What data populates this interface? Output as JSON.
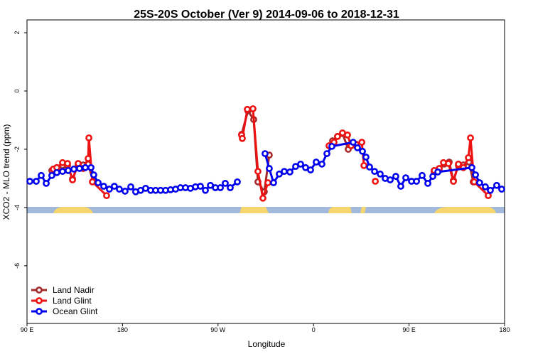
{
  "chart_data": {
    "type": "line",
    "title": "25S-20S October (Ver 9)   2014-09-06 to 2018-12-31",
    "xlabel": "Longitude",
    "ylabel": "XCO2 - MLO trend (ppm)",
    "xlim": [
      90,
      540
    ],
    "ylim": [
      -7.98,
      2.44
    ],
    "xticks": [
      {
        "value": 90,
        "label": "90 E"
      },
      180,
      {
        "value": 270,
        "label": "90 W"
      },
      {
        "value": 360,
        "label": "0"
      },
      {
        "value": 450,
        "label": "90 E"
      },
      {
        "value": 540,
        "label": "180"
      }
    ],
    "yticks": [
      2,
      0,
      -2,
      -4,
      -6
    ],
    "legend": "bottom-left",
    "series": [
      {
        "name": "Land Nadir",
        "color": "#a52a2a",
        "x": [
          113.4,
          118.1,
          123.5,
          128.2,
          132.9,
          138.2,
          142.9,
          147.6,
          152.3,
          null,
          292.2,
          298.2,
          303.6,
          307.6,
          313.6,
          318.3,
          null,
          377.9,
          382.6,
          387.3,
          392.7,
          397.3,
          null,
          473.7,
          478.4,
          483.1,
          487.8,
          491.8,
          496.5,
          501.2,
          506.5,
          510.5
        ],
        "values": [
          -2.73,
          -2.63,
          -2.56,
          -2.56,
          -3.02,
          -2.54,
          -2.54,
          -2.51,
          -3.1,
          null,
          -1.49,
          -0.68,
          -0.98,
          -3.12,
          -3.46,
          -2.2,
          null,
          -1.71,
          -1.56,
          -1.46,
          -2.0,
          -1.85,
          null,
          -2.78,
          -2.68,
          -2.51,
          -2.44,
          -3.07,
          -2.56,
          -2.54,
          -2.44,
          -3.12
        ]
      },
      {
        "name": "Land Glint",
        "color": "#ee1111",
        "x": [
          114.8,
          118.1,
          123.5,
          128.2,
          132.9,
          138.2,
          142.9,
          147.6,
          148.3,
          151.6,
          165.0,
          null,
          292.2,
          292.9,
          297.6,
          302.9,
          307.6,
          312.3,
          317.0,
          null,
          374.6,
          379.3,
          382.6,
          387.3,
          392.0,
          395.4,
          400.1,
          405.5,
          407.5,
          null,
          418.2,
          null,
          473.7,
          478.4,
          482.4,
          487.1,
          491.8,
          496.5,
          501.2,
          505.9,
          507.9,
          511.3,
          524.6
        ],
        "values": [
          -2.68,
          -2.63,
          -2.46,
          -2.49,
          -3.05,
          -2.49,
          -2.66,
          -2.32,
          -1.61,
          -3.12,
          -3.59,
          null,
          -1.51,
          -1.63,
          -0.63,
          -0.61,
          -2.76,
          -3.68,
          -3.15,
          null,
          -1.88,
          -1.76,
          -1.56,
          -1.44,
          -1.51,
          -1.88,
          -1.83,
          -1.76,
          -2.56,
          null,
          -3.1,
          null,
          -2.73,
          -2.66,
          -2.46,
          -2.49,
          -3.1,
          -2.51,
          -2.63,
          -2.29,
          -1.61,
          -3.12,
          -3.59
        ]
      },
      {
        "name": "Ocean Glint",
        "color": "#0000ee",
        "x": [
          92.7,
          98.7,
          103.4,
          108.1,
          113.4,
          118.1,
          123.5,
          128.8,
          134.2,
          139.5,
          144.9,
          150.3,
          152.9,
          157.0,
          162.3,
          167.6,
          172.3,
          177.0,
          182.4,
          187.8,
          192.4,
          197.1,
          201.8,
          206.5,
          211.2,
          215.9,
          220.6,
          225.3,
          230.0,
          234.6,
          239.3,
          244.0,
          248.7,
          253.4,
          258.1,
          262.8,
          267.5,
          272.2,
          276.8,
          281.5,
          288.2,
          null,
          314.3,
          318.3,
          322.3,
          327.7,
          332.4,
          337.7,
          343.1,
          347.8,
          352.5,
          357.2,
          362.5,
          367.9,
          372.6,
          377.3,
          397.3,
          401.4,
          406.1,
          409.4,
          412.8,
          417.5,
          422.8,
          427.5,
          432.2,
          437.5,
          442.2,
          446.9,
          452.3,
          457.0,
          462.3,
          467.7,
          472.4,
          477.1,
          509.2,
          512.6,
          516.5,
          521.9,
          526.6,
          532.6,
          537.3
        ],
        "values": [
          -3.1,
          -3.1,
          -2.9,
          -3.17,
          -2.9,
          -2.8,
          -2.76,
          -2.73,
          -2.68,
          -2.66,
          -2.63,
          -2.63,
          -2.88,
          -3.15,
          -3.27,
          -3.37,
          -3.27,
          -3.37,
          -3.44,
          -3.29,
          -3.46,
          -3.41,
          -3.34,
          -3.41,
          -3.41,
          -3.41,
          -3.41,
          -3.39,
          -3.37,
          -3.32,
          -3.32,
          -3.34,
          -3.29,
          -3.27,
          -3.41,
          -3.24,
          -3.32,
          -3.32,
          -3.17,
          -3.32,
          -3.12,
          null,
          -2.15,
          -2.66,
          -3.15,
          -2.85,
          -2.76,
          -2.78,
          -2.59,
          -2.51,
          -2.63,
          -2.71,
          -2.44,
          -2.51,
          -2.15,
          -1.9,
          -1.76,
          -1.95,
          -2.07,
          -2.27,
          -2.61,
          -2.76,
          -2.85,
          -3.0,
          -3.05,
          -2.93,
          -3.27,
          -2.98,
          -3.1,
          -3.1,
          -2.9,
          -3.17,
          -2.93,
          -2.78,
          -2.63,
          -2.88,
          -3.15,
          -3.29,
          -3.41,
          -3.24,
          -3.37
        ]
      }
    ]
  }
}
